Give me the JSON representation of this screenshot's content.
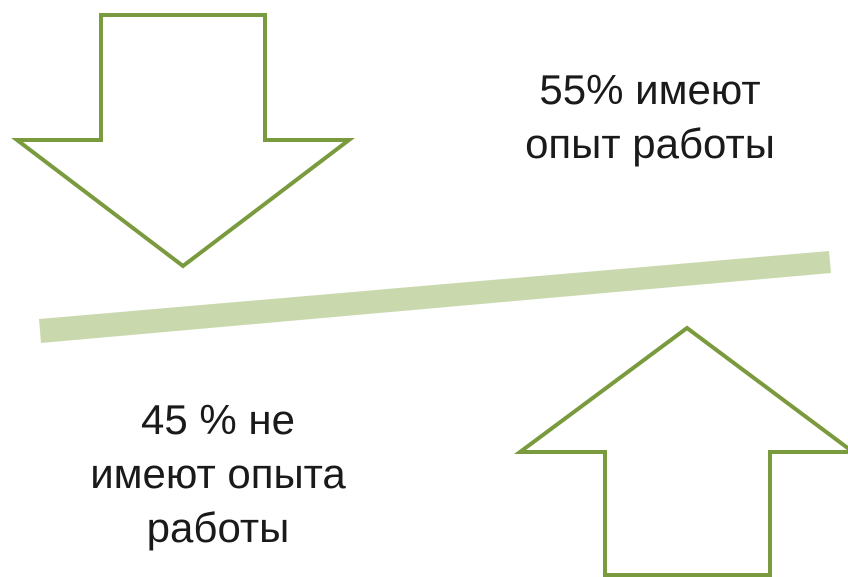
{
  "colors": {
    "arrow_outline": "#7a9a3e",
    "balance_bar": "#c9d8ad",
    "background": "#ffffff",
    "text": "#1a1a1a"
  },
  "top_label": {
    "line1": "55% имеют",
    "line2": "опыт работы"
  },
  "bottom_label": {
    "line1": "45 % не",
    "line2": "имеют опыта",
    "line3": "работы"
  },
  "icons": {
    "top_arrow": "arrow-down-icon",
    "bottom_arrow": "arrow-up-icon"
  }
}
